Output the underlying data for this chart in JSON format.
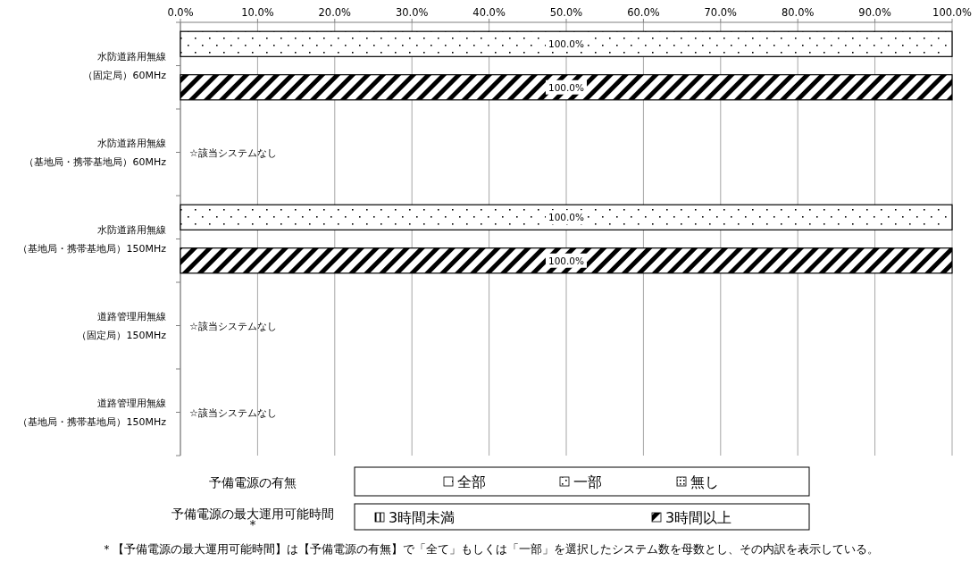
{
  "chart_data": {
    "type": "bar",
    "orientation": "horizontal",
    "stacked": true,
    "categories": [
      "水防道路用無線（固定局）60MHz",
      null,
      "水防道路用無線（基地局・携帯基地局）60MHz",
      null,
      "水防道路用無線（基地局・携帯基地局）150MHz",
      null,
      "道路管理用無線（固定局）150MHz",
      null,
      "道路管理用無線（基地局・携帯基地局）150MHz",
      null
    ],
    "series": [
      {
        "name": "全部",
        "color": "#000000",
        "values": [
          100,
          null,
          null,
          null,
          100,
          null,
          null,
          null,
          null,
          null
        ],
        "value_labels": [
          "100.0%",
          null,
          null,
          null,
          "100.0%",
          null,
          null,
          null,
          null,
          null
        ]
      },
      {
        "name": "一部",
        "color": "#000000",
        "values": [
          null,
          null,
          null,
          null,
          null,
          null,
          null,
          null,
          null,
          null
        ]
      },
      {
        "name": "無し",
        "color": "#000000",
        "values": [
          null,
          null,
          null,
          null,
          null,
          null,
          null,
          null,
          null,
          null
        ]
      },
      {
        "name": "3時間未満",
        "color": "#000000",
        "values": [
          null,
          null,
          null,
          null,
          null,
          null,
          null,
          null,
          null,
          null
        ]
      },
      {
        "name": "3時間以上",
        "color": "#000000",
        "values": [
          null,
          100,
          null,
          null,
          null,
          100,
          null,
          null,
          null,
          null
        ],
        "value_labels": [
          null,
          "100.0%",
          null,
          null,
          null,
          "100.0%",
          null,
          null,
          null,
          null
        ]
      }
    ],
    "xlim": [
      0,
      100
    ],
    "xticks": [
      {
        "value": 0,
        "label": "0.0%"
      },
      {
        "value": 10,
        "label": "10.0%"
      },
      {
        "value": 20,
        "label": "20.0%"
      },
      {
        "value": 30,
        "label": "30.0%"
      },
      {
        "value": 40,
        "label": "40.0%"
      },
      {
        "value": 50,
        "label": "50.0%"
      },
      {
        "value": 60,
        "label": "60.0%"
      },
      {
        "value": 70,
        "label": "70.0%"
      },
      {
        "value": 80,
        "label": "80.0%"
      },
      {
        "value": 90,
        "label": "90.0%"
      },
      {
        "value": 100,
        "label": "100.0%"
      }
    ],
    "grid": "x",
    "legend": "bottom",
    "legend_title": "予備電源の有無",
    "annotations": [
      "予備電源の最大運用可能時間\n*",
      "＊【予備電源の最大運用可能時間】は【予備電源の有無】で「全て」もしくは「一部」を選択したシステム数を母数とし、その内訳を表示している。",
      "☆該当システムなし",
      "☆該当システムなし",
      "☆該当システムなし"
    ]
  }
}
